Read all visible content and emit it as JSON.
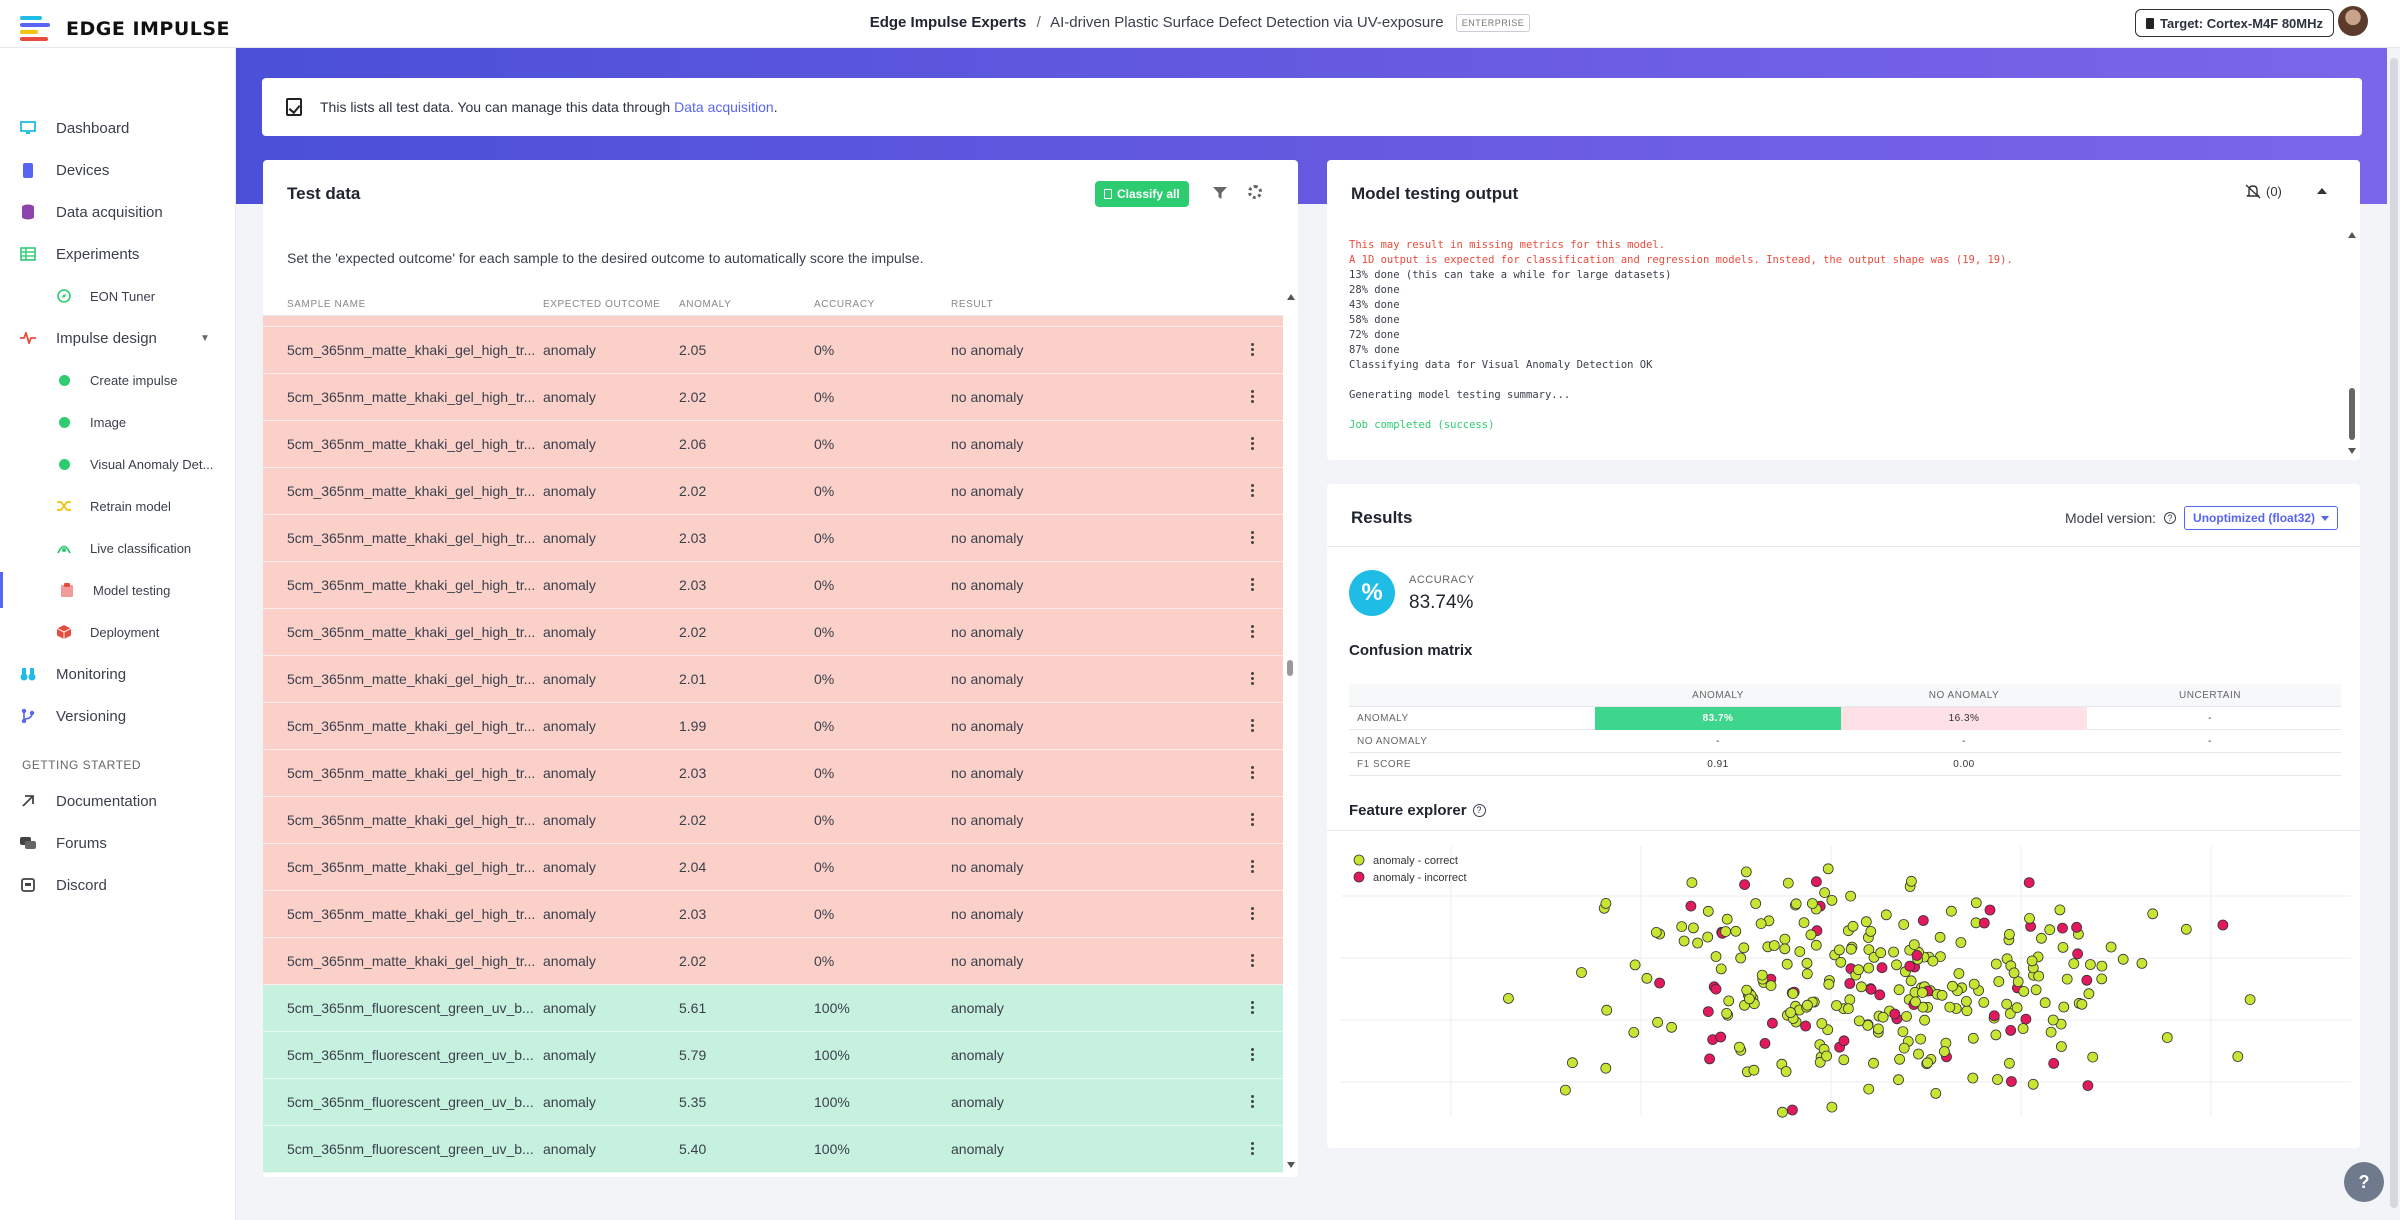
{
  "brand": {
    "name": "EDGE IMPULSE"
  },
  "header": {
    "org": "Edge Impulse Experts",
    "separator": "/",
    "project": "AI-driven Plastic Surface Defect Detection via UV-exposure",
    "badge": "ENTERPRISE",
    "target": "Target: Cortex-M4F 80MHz"
  },
  "sidebar": {
    "items": [
      {
        "label": "Dashboard",
        "icon": "monitor-icon",
        "color": "#1fbde6"
      },
      {
        "label": "Devices",
        "icon": "device-icon",
        "color": "#5865f2"
      },
      {
        "label": "Data acquisition",
        "icon": "database-icon",
        "color": "#8e44ad"
      },
      {
        "label": "Experiments",
        "icon": "grid-icon",
        "color": "#2ecc71"
      },
      {
        "label": "EON Tuner",
        "icon": "compass-icon",
        "color": "#2ecc71"
      },
      {
        "label": "Impulse design",
        "icon": "pulse-icon",
        "color": "#e74c3c"
      },
      {
        "label": "Create impulse",
        "icon": "dot-icon",
        "color": "#2ecc71"
      },
      {
        "label": "Image",
        "icon": "dot-icon",
        "color": "#2ecc71"
      },
      {
        "label": "Visual Anomaly Det...",
        "icon": "dot-icon",
        "color": "#2ecc71"
      },
      {
        "label": "Retrain model",
        "icon": "shuffle-icon",
        "color": "#f1c40f"
      },
      {
        "label": "Live classification",
        "icon": "live-icon",
        "color": "#2ecc71"
      },
      {
        "label": "Model testing",
        "icon": "clipboard-icon",
        "color": "#e74c3c"
      },
      {
        "label": "Deployment",
        "icon": "box-icon",
        "color": "#e74c3c"
      },
      {
        "label": "Monitoring",
        "icon": "binoculars-icon",
        "color": "#1fbde6"
      },
      {
        "label": "Versioning",
        "icon": "branch-icon",
        "color": "#5865f2"
      }
    ],
    "section": "GETTING STARTED",
    "help_items": [
      {
        "label": "Documentation",
        "icon": "doc-icon"
      },
      {
        "label": "Forums",
        "icon": "chat-icon"
      },
      {
        "label": "Discord",
        "icon": "discord-icon"
      }
    ]
  },
  "info": {
    "text": "This lists all test data. You can manage this data through ",
    "link": "Data acquisition",
    "suffix": "."
  },
  "test_data": {
    "title": "Test data",
    "classify_all": "Classify all",
    "description": "Set the 'expected outcome' for each sample to the desired outcome to automatically score the impulse.",
    "columns": [
      "SAMPLE NAME",
      "EXPECTED OUTCOME",
      "ANOMALY",
      "ACCURACY",
      "RESULT"
    ],
    "rows": [
      {
        "name": "5cm_365nm_matte_khaki_gel_high_tr...",
        "expected": "anomaly",
        "anomaly": "2.05",
        "accuracy": "0%",
        "result": "no anomaly",
        "status": "incorrect"
      },
      {
        "name": "5cm_365nm_matte_khaki_gel_high_tr...",
        "expected": "anomaly",
        "anomaly": "2.02",
        "accuracy": "0%",
        "result": "no anomaly",
        "status": "incorrect"
      },
      {
        "name": "5cm_365nm_matte_khaki_gel_high_tr...",
        "expected": "anomaly",
        "anomaly": "2.06",
        "accuracy": "0%",
        "result": "no anomaly",
        "status": "incorrect"
      },
      {
        "name": "5cm_365nm_matte_khaki_gel_high_tr...",
        "expected": "anomaly",
        "anomaly": "2.02",
        "accuracy": "0%",
        "result": "no anomaly",
        "status": "incorrect"
      },
      {
        "name": "5cm_365nm_matte_khaki_gel_high_tr...",
        "expected": "anomaly",
        "anomaly": "2.03",
        "accuracy": "0%",
        "result": "no anomaly",
        "status": "incorrect"
      },
      {
        "name": "5cm_365nm_matte_khaki_gel_high_tr...",
        "expected": "anomaly",
        "anomaly": "2.03",
        "accuracy": "0%",
        "result": "no anomaly",
        "status": "incorrect"
      },
      {
        "name": "5cm_365nm_matte_khaki_gel_high_tr...",
        "expected": "anomaly",
        "anomaly": "2.02",
        "accuracy": "0%",
        "result": "no anomaly",
        "status": "incorrect"
      },
      {
        "name": "5cm_365nm_matte_khaki_gel_high_tr...",
        "expected": "anomaly",
        "anomaly": "2.01",
        "accuracy": "0%",
        "result": "no anomaly",
        "status": "incorrect"
      },
      {
        "name": "5cm_365nm_matte_khaki_gel_high_tr...",
        "expected": "anomaly",
        "anomaly": "1.99",
        "accuracy": "0%",
        "result": "no anomaly",
        "status": "incorrect"
      },
      {
        "name": "5cm_365nm_matte_khaki_gel_high_tr...",
        "expected": "anomaly",
        "anomaly": "2.03",
        "accuracy": "0%",
        "result": "no anomaly",
        "status": "incorrect"
      },
      {
        "name": "5cm_365nm_matte_khaki_gel_high_tr...",
        "expected": "anomaly",
        "anomaly": "2.02",
        "accuracy": "0%",
        "result": "no anomaly",
        "status": "incorrect"
      },
      {
        "name": "5cm_365nm_matte_khaki_gel_high_tr...",
        "expected": "anomaly",
        "anomaly": "2.04",
        "accuracy": "0%",
        "result": "no anomaly",
        "status": "incorrect"
      },
      {
        "name": "5cm_365nm_matte_khaki_gel_high_tr...",
        "expected": "anomaly",
        "anomaly": "2.03",
        "accuracy": "0%",
        "result": "no anomaly",
        "status": "incorrect"
      },
      {
        "name": "5cm_365nm_matte_khaki_gel_high_tr...",
        "expected": "anomaly",
        "anomaly": "2.02",
        "accuracy": "0%",
        "result": "no anomaly",
        "status": "incorrect"
      },
      {
        "name": "5cm_365nm_fluorescent_green_uv_b...",
        "expected": "anomaly",
        "anomaly": "5.61",
        "accuracy": "100%",
        "result": "anomaly",
        "status": "correct"
      },
      {
        "name": "5cm_365nm_fluorescent_green_uv_b...",
        "expected": "anomaly",
        "anomaly": "5.79",
        "accuracy": "100%",
        "result": "anomaly",
        "status": "correct"
      },
      {
        "name": "5cm_365nm_fluorescent_green_uv_b...",
        "expected": "anomaly",
        "anomaly": "5.35",
        "accuracy": "100%",
        "result": "anomaly",
        "status": "correct"
      },
      {
        "name": "5cm_365nm_fluorescent_green_uv_b...",
        "expected": "anomaly",
        "anomaly": "5.40",
        "accuracy": "100%",
        "result": "anomaly",
        "status": "correct"
      }
    ],
    "row_colors": {
      "incorrect": "#fbd0c9",
      "correct": "#c6f1de"
    }
  },
  "model_output": {
    "title": "Model testing output",
    "notifications": "(0)",
    "log": [
      {
        "text": "This may result in missing metrics for this model.",
        "kind": "err"
      },
      {
        "text": "A 1D output is expected for classification and regression models. Instead, the output shape was (19, 19).",
        "kind": "err"
      },
      {
        "text": "13% done (this can take a while for large datasets)",
        "kind": ""
      },
      {
        "text": "28% done",
        "kind": ""
      },
      {
        "text": "43% done",
        "kind": ""
      },
      {
        "text": "58% done",
        "kind": ""
      },
      {
        "text": "72% done",
        "kind": ""
      },
      {
        "text": "87% done",
        "kind": ""
      },
      {
        "text": "Classifying data for Visual Anomaly Detection OK",
        "kind": ""
      },
      {
        "text": "",
        "kind": ""
      },
      {
        "text": "Generating model testing summary...",
        "kind": ""
      },
      {
        "text": "",
        "kind": ""
      },
      {
        "text": "Job completed (success)",
        "kind": "ok"
      }
    ]
  },
  "results": {
    "title": "Results",
    "model_version_label": "Model version:",
    "model_version": "Unoptimized (float32)",
    "accuracy_label": "ACCURACY",
    "accuracy_symbol": "%",
    "accuracy_value": "83.74%",
    "confusion_title": "Confusion matrix",
    "confusion": {
      "columns": [
        "ANOMALY",
        "NO ANOMALY",
        "UNCERTAIN"
      ],
      "rows": [
        {
          "label": "ANOMALY",
          "cells": [
            "83.7%",
            "16.3%",
            "-"
          ]
        },
        {
          "label": "NO ANOMALY",
          "cells": [
            "-",
            "-",
            "-"
          ]
        },
        {
          "label": "F1 SCORE",
          "cells": [
            "0.91",
            "0.00",
            ""
          ]
        }
      ],
      "colors": {
        "good": "#3dd68c",
        "bad": "#fde1e6"
      }
    },
    "feature_title": "Feature explorer",
    "legend": [
      {
        "label": "anomaly - correct",
        "color": "#c6e633"
      },
      {
        "label": "anomaly - incorrect",
        "color": "#e2195f"
      }
    ]
  },
  "help_button": "?"
}
